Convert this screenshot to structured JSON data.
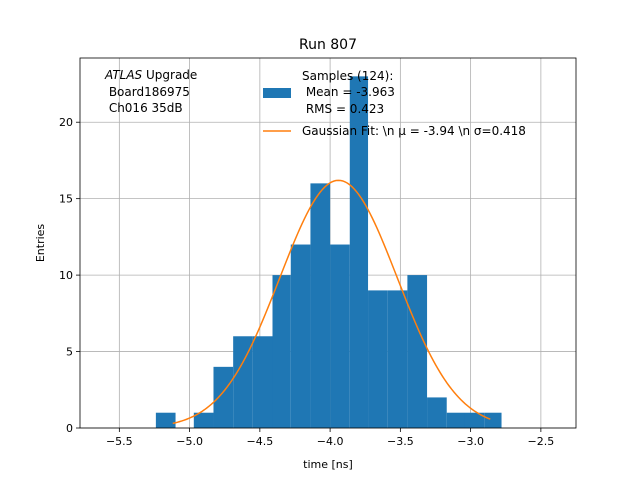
{
  "chart_data": {
    "type": "bar",
    "title": "Run 807",
    "xlabel": "time [ns]",
    "ylabel": "Entries",
    "xlim": [
      -5.78,
      -2.25
    ],
    "ylim": [
      0,
      24.2
    ],
    "grid": true,
    "xticks": [
      -5.5,
      -5.0,
      -4.5,
      -4.0,
      -3.5,
      -3.0,
      -2.5
    ],
    "xtick_labels": [
      "−5.5",
      "−5.0",
      "−4.5",
      "−4.0",
      "−3.5",
      "−3.0",
      "−2.5"
    ],
    "yticks": [
      0,
      5,
      10,
      15,
      20
    ],
    "ytick_labels": [
      "0",
      "5",
      "10",
      "15",
      "20"
    ],
    "annotation": {
      "italic_part": "ATLAS",
      "line1_rest": " Upgrade",
      "line2": " Board186975",
      "line3": " Ch016 35dB"
    },
    "legend_position": "top-right",
    "histogram": {
      "name_lines": [
        "Samples (124):",
        " Mean = -3.963",
        " RMS = 0.423"
      ],
      "color": "#1f77b4",
      "bin_edges": [
        -5.24,
        -5.1,
        -4.97,
        -4.83,
        -4.69,
        -4.55,
        -4.41,
        -4.28,
        -4.14,
        -4.0,
        -3.86,
        -3.73,
        -3.59,
        -3.45,
        -3.31,
        -3.17,
        -3.04,
        -2.9,
        -2.78
      ],
      "counts": [
        1,
        0,
        1,
        4,
        6,
        6,
        10,
        12,
        16,
        12,
        23,
        9,
        9,
        10,
        2,
        1,
        1,
        1
      ]
    },
    "fit": {
      "name": "Gaussian Fit: \\n μ = -3.94 \\n σ=0.418",
      "color": "#ff7f0e",
      "mu": -3.94,
      "sigma": 0.418,
      "amplitude": 16.2,
      "x_range": [
        -5.12,
        -2.86
      ]
    }
  }
}
